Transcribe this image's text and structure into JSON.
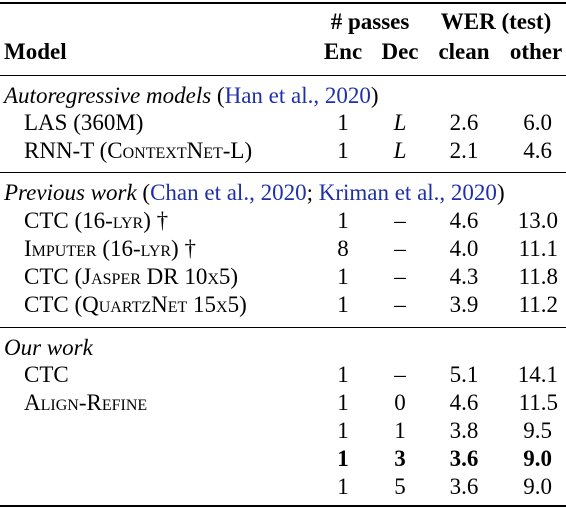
{
  "header": {
    "passes": "# passes",
    "wer": "WER (test)",
    "model": "Model",
    "enc": "Enc",
    "dec": "Dec",
    "clean": "clean",
    "other": "other"
  },
  "groups": [
    {
      "title": "Autoregressive models",
      "title_suffix_open": " (",
      "cites": [
        "Han et al., 2020"
      ],
      "title_suffix_close": ")",
      "rows": [
        {
          "model": "LAS (360M)",
          "enc": "1",
          "dec": "L",
          "clean": "2.6",
          "other": "6.0"
        },
        {
          "model": "RNN-T (ContextNet-L)",
          "enc": "1",
          "dec": "L",
          "clean": "2.1",
          "other": "4.6"
        }
      ]
    },
    {
      "title": "Previous work",
      "title_suffix_open": " (",
      "cites": [
        "Chan et al., 2020",
        "Kriman et al., 2020"
      ],
      "title_suffix_close": ")",
      "rows": [
        {
          "model": "CTC (16-lyr) †",
          "enc": "1",
          "dec": "–",
          "clean": "4.6",
          "other": "13.0"
        },
        {
          "model": "Imputer (16-lyr) †",
          "enc": "8",
          "dec": "–",
          "clean": "4.0",
          "other": "11.1"
        },
        {
          "model": "CTC (Jasper DR 10x5)",
          "enc": "1",
          "dec": "–",
          "clean": "4.3",
          "other": "11.8"
        },
        {
          "model": "CTC (QuartzNet 15x5)",
          "enc": "1",
          "dec": "–",
          "clean": "3.9",
          "other": "11.2"
        }
      ]
    },
    {
      "title": "Our work",
      "rows": [
        {
          "model": "CTC",
          "enc": "1",
          "dec": "–",
          "clean": "5.1",
          "other": "14.1"
        },
        {
          "model": "Align-Refine",
          "enc": "1",
          "dec": "0",
          "clean": "4.6",
          "other": "11.5"
        },
        {
          "model": "",
          "enc": "1",
          "dec": "1",
          "clean": "3.8",
          "other": "9.5"
        },
        {
          "model": "",
          "enc": "1",
          "dec": "3",
          "clean": "3.6",
          "other": "9.0",
          "bold": true
        },
        {
          "model": "",
          "enc": "1",
          "dec": "5",
          "clean": "3.6",
          "other": "9.0"
        }
      ]
    }
  ]
}
